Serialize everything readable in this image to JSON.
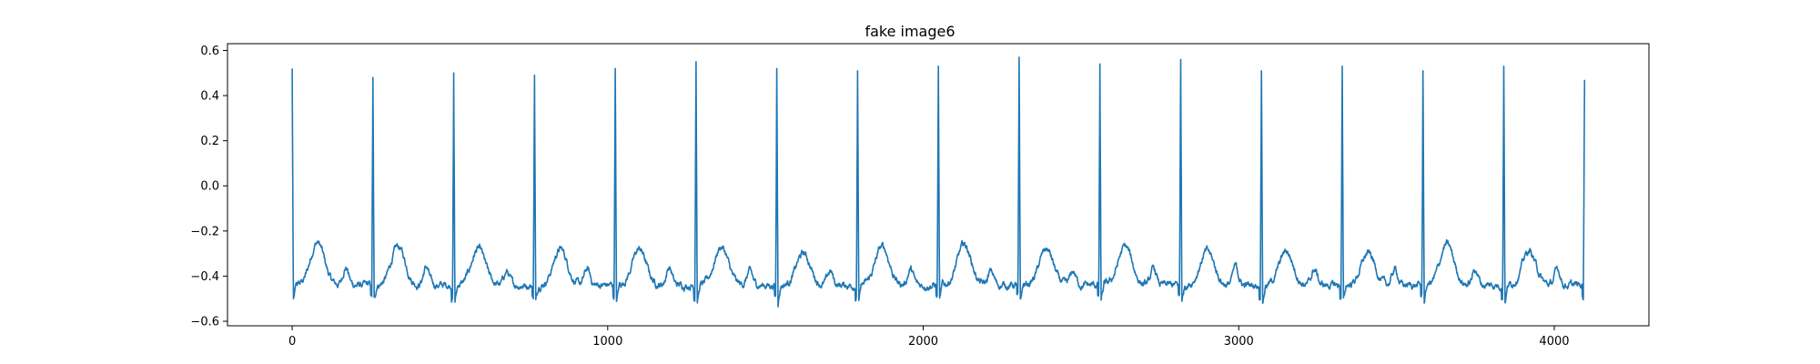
{
  "chart_data": {
    "type": "line",
    "title": "fake image6",
    "xlabel": "",
    "ylabel": "",
    "xlim": [
      -205,
      4300
    ],
    "ylim": [
      -0.62,
      0.63
    ],
    "xticks": [
      0,
      1000,
      2000,
      3000,
      4000
    ],
    "xtick_labels": [
      "0",
      "1000",
      "2000",
      "3000",
      "4000"
    ],
    "yticks": [
      -0.6,
      -0.4,
      -0.2,
      0.0,
      0.2,
      0.4,
      0.6
    ],
    "ytick_labels": [
      "−0.6",
      "−0.4",
      "−0.2",
      "0.0",
      "0.2",
      "0.4",
      "0.6"
    ],
    "grid": false,
    "legend": "none",
    "line_color": "#1f77b4",
    "series": [
      {
        "baseline": -0.44,
        "trough": -0.52,
        "samples": 4096,
        "beats": [
          {
            "x": 0,
            "peak": 0.52
          },
          {
            "x": 256,
            "peak": 0.48
          },
          {
            "x": 512,
            "peak": 0.5
          },
          {
            "x": 768,
            "peak": 0.49
          },
          {
            "x": 1024,
            "peak": 0.52
          },
          {
            "x": 1280,
            "peak": 0.55
          },
          {
            "x": 1536,
            "peak": 0.52
          },
          {
            "x": 1792,
            "peak": 0.51
          },
          {
            "x": 2048,
            "peak": 0.53
          },
          {
            "x": 2304,
            "peak": 0.57
          },
          {
            "x": 2560,
            "peak": 0.54
          },
          {
            "x": 2816,
            "peak": 0.56
          },
          {
            "x": 3072,
            "peak": 0.51
          },
          {
            "x": 3328,
            "peak": 0.53
          },
          {
            "x": 3584,
            "peak": 0.51
          },
          {
            "x": 3840,
            "peak": 0.53
          },
          {
            "x": 4096,
            "peak": 0.47
          }
        ],
        "t_waves": [
          {
            "x": 80,
            "y": -0.25
          },
          {
            "x": 336,
            "y": -0.27
          },
          {
            "x": 590,
            "y": -0.28
          },
          {
            "x": 850,
            "y": -0.28
          },
          {
            "x": 1100,
            "y": -0.28
          },
          {
            "x": 1360,
            "y": -0.27
          },
          {
            "x": 1620,
            "y": -0.3
          },
          {
            "x": 1870,
            "y": -0.27
          },
          {
            "x": 2130,
            "y": -0.26
          },
          {
            "x": 2390,
            "y": -0.28
          },
          {
            "x": 2640,
            "y": -0.27
          },
          {
            "x": 2900,
            "y": -0.29
          },
          {
            "x": 3150,
            "y": -0.29
          },
          {
            "x": 3410,
            "y": -0.3
          },
          {
            "x": 3660,
            "y": -0.26
          },
          {
            "x": 3920,
            "y": -0.29
          }
        ],
        "p_waves": [
          {
            "x": 170,
            "y": -0.36
          },
          {
            "x": 425,
            "y": -0.36
          },
          {
            "x": 680,
            "y": -0.38
          },
          {
            "x": 935,
            "y": -0.37
          },
          {
            "x": 1195,
            "y": -0.36
          },
          {
            "x": 1450,
            "y": -0.38
          },
          {
            "x": 1705,
            "y": -0.38
          },
          {
            "x": 1960,
            "y": -0.37
          },
          {
            "x": 2215,
            "y": -0.38
          },
          {
            "x": 2475,
            "y": -0.38
          },
          {
            "x": 2730,
            "y": -0.37
          },
          {
            "x": 2990,
            "y": -0.36
          },
          {
            "x": 3240,
            "y": -0.37
          },
          {
            "x": 3495,
            "y": -0.37
          },
          {
            "x": 3750,
            "y": -0.37
          },
          {
            "x": 4010,
            "y": -0.37
          }
        ]
      }
    ]
  }
}
